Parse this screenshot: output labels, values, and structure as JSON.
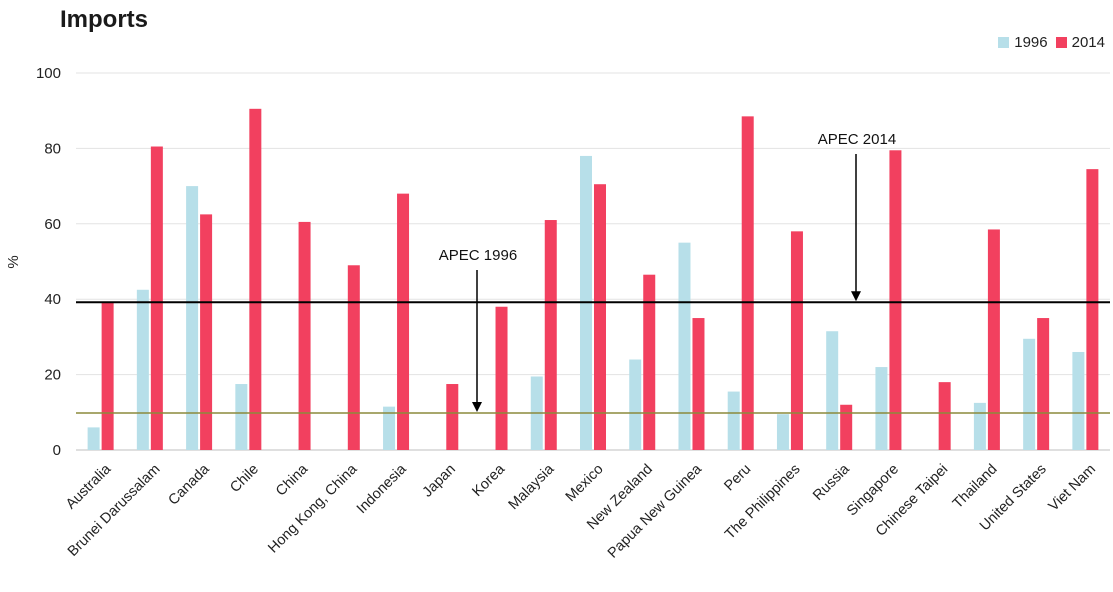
{
  "chart_data": {
    "type": "bar",
    "title": "Imports",
    "ylabel": "%",
    "xlabel": "",
    "ylim": [
      0,
      100
    ],
    "yticks": [
      0,
      20,
      40,
      60,
      80,
      100
    ],
    "grid": true,
    "legend_position": "top-right",
    "categories": [
      "Australia",
      "Brunei Darussalam",
      "Canada",
      "Chile",
      "China",
      "Hong Kong, China",
      "Indonesia",
      "Japan",
      "Korea",
      "Malaysia",
      "Mexico",
      "New Zealand",
      "Papua New Guinea",
      "Peru",
      "The Philippines",
      "Russia",
      "Singapore",
      "Chinese Taipei",
      "Thailand",
      "United States",
      "Viet Nam"
    ],
    "series": [
      {
        "name": "1996",
        "color": "#b7dfe9",
        "values": [
          6,
          42.5,
          70,
          17.5,
          null,
          null,
          11.5,
          null,
          null,
          19.5,
          78,
          24,
          55,
          15.5,
          9.5,
          31.5,
          22,
          null,
          12.5,
          29.5,
          26
        ]
      },
      {
        "name": "2014",
        "color": "#f2405f",
        "values": [
          39,
          80.5,
          62.5,
          90.5,
          60.5,
          49,
          68,
          17.5,
          38,
          61,
          70.5,
          46.5,
          35,
          88.5,
          58,
          12,
          79.5,
          18,
          58.5,
          35,
          74.5
        ]
      }
    ],
    "reference_lines": [
      {
        "label": "APEC 1996",
        "value": 9.8,
        "color": "#8c8a3c"
      },
      {
        "label": "APEC 2014",
        "value": 39.2,
        "color": "#000000"
      }
    ]
  }
}
